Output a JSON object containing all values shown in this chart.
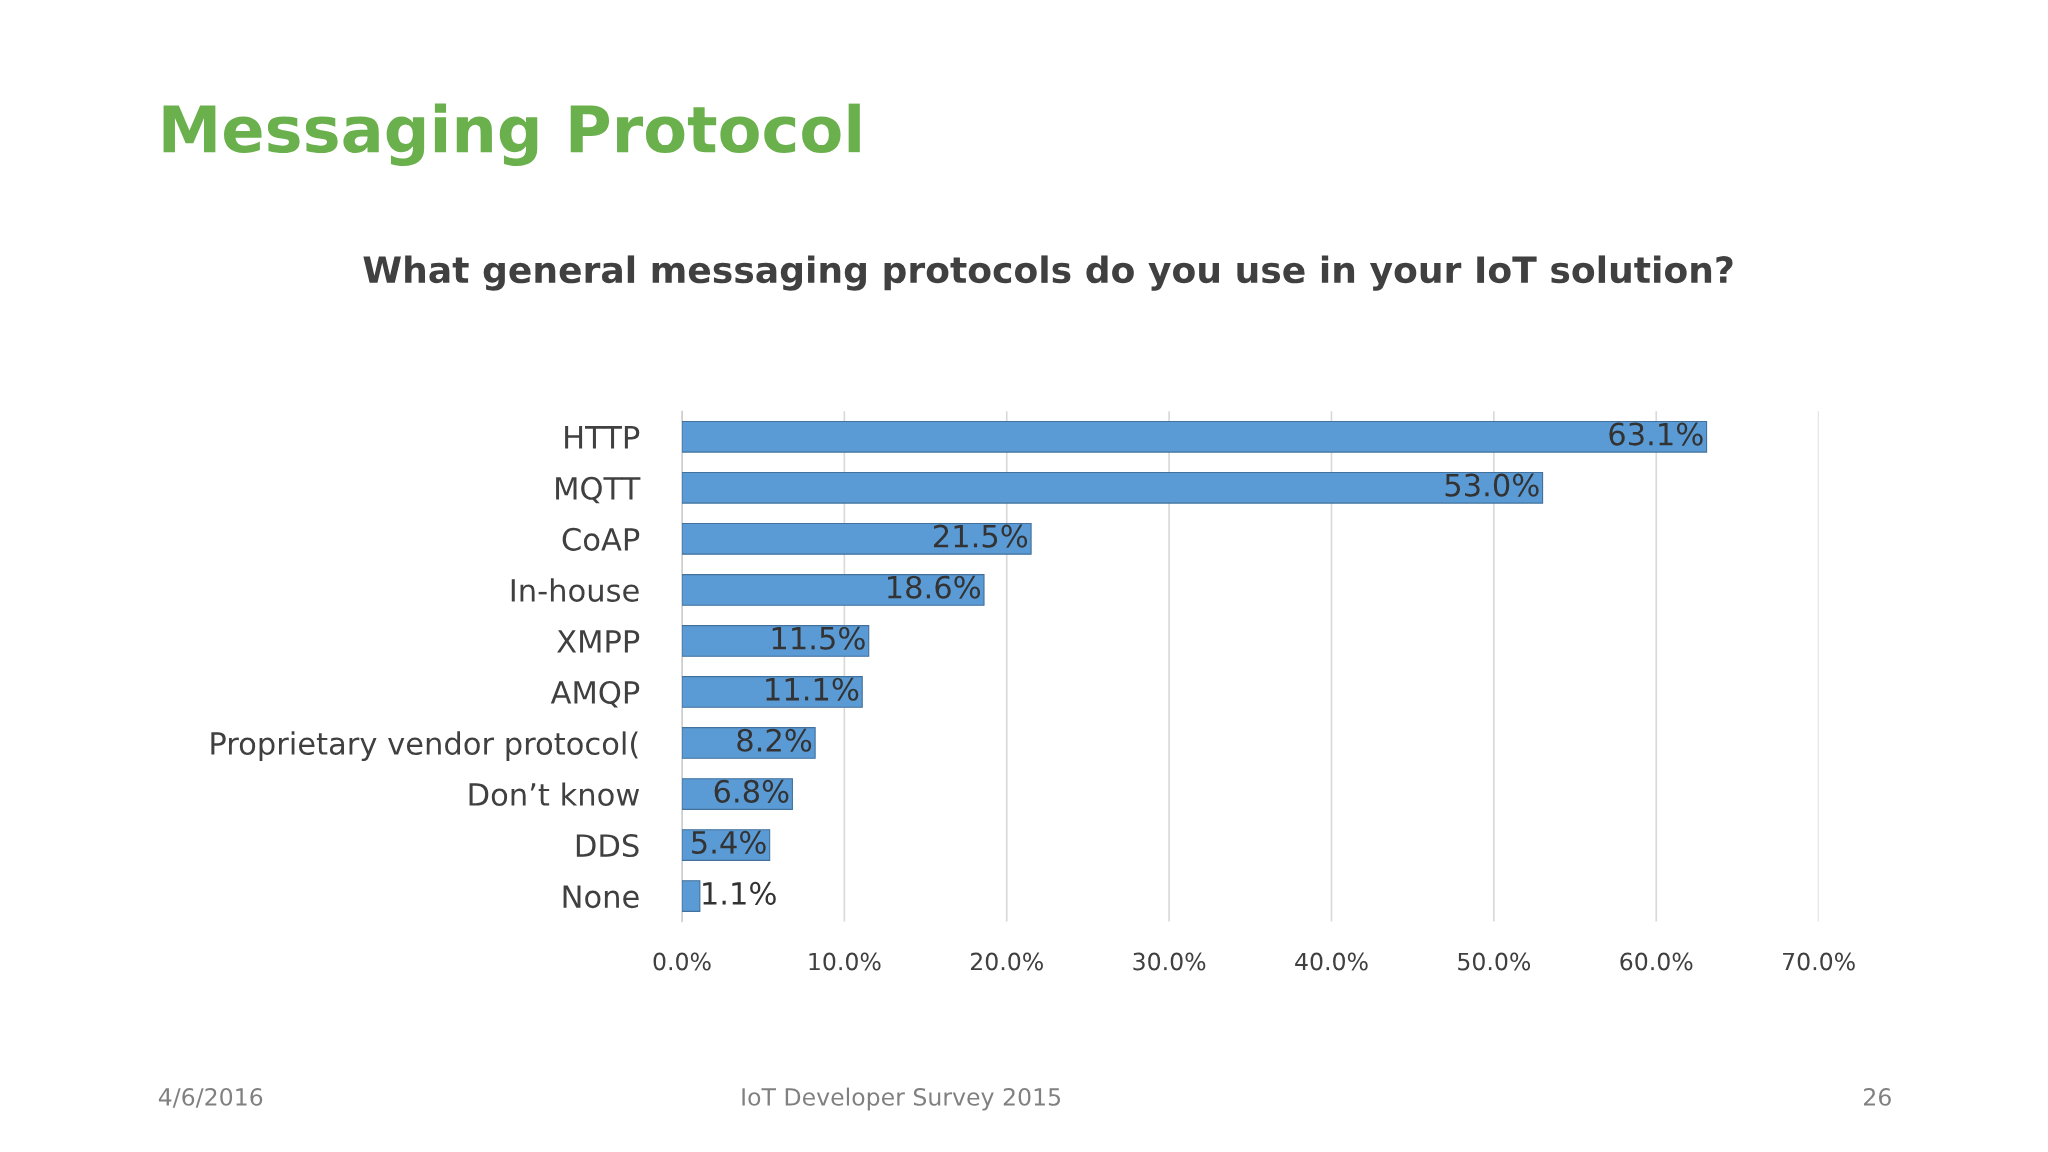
{
  "chart_data": {
    "type": "bar",
    "orientation": "horizontal",
    "title": "Messaging Protocol",
    "subtitle": "What general messaging protocols do you use in your IoT solution?",
    "categories": [
      "HTTP",
      "MQTT",
      "CoAP",
      "In-house",
      "XMPP",
      "AMQP",
      "Proprietary vendor protocol(",
      "Don’t know",
      "DDS",
      "None"
    ],
    "values": [
      63.1,
      53.0,
      21.5,
      18.6,
      11.5,
      11.1,
      8.2,
      6.8,
      5.4,
      1.1
    ],
    "value_labels": [
      "63.1%",
      "53.0%",
      "21.5%",
      "18.6%",
      "11.5%",
      "11.1%",
      "8.2%",
      "6.8%",
      "5.4%",
      "1.1%"
    ],
    "color": "#5b9bd5",
    "xlim": [
      0,
      70
    ],
    "xticks": [
      {
        "value": 0,
        "label": "0.0%"
      },
      {
        "value": 10,
        "label": "10.0%"
      },
      {
        "value": 20,
        "label": "20.0%"
      },
      {
        "value": 30,
        "label": "30.0%"
      },
      {
        "value": 40,
        "label": "40.0%"
      },
      {
        "value": 50,
        "label": "50.0%"
      },
      {
        "value": 60,
        "label": "60.0%"
      },
      {
        "value": 70,
        "label": "70.0%"
      }
    ],
    "grid": "x",
    "annotations": [
      "4/6/2016",
      "IoT Developer Survey 2015",
      "26"
    ]
  }
}
